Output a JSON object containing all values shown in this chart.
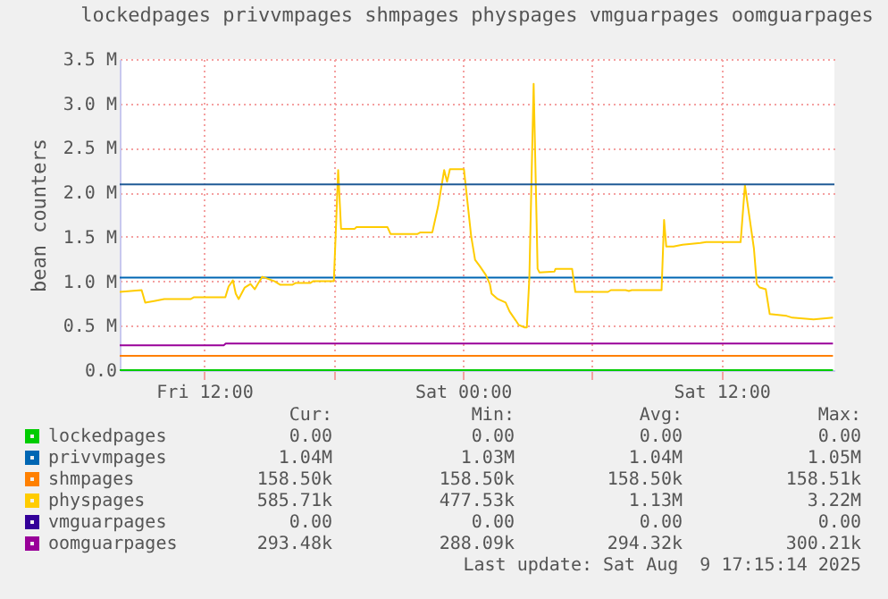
{
  "chart_data": {
    "type": "line",
    "title": "lockedpages privvmpages shmpages physpages vmguarpages oomguarpages",
    "ylabel": "bean counters",
    "xlim": [
      "2025-08-08T08:05",
      "2025-08-09T17:14"
    ],
    "xticks": [
      {
        "value": "2025-08-08T12:00",
        "label": "Fri 12:00"
      },
      {
        "value": "2025-08-08T18:00",
        "label": null
      },
      {
        "value": "2025-08-09T00:00",
        "label": "Sat 00:00"
      },
      {
        "value": "2025-08-09T06:00",
        "label": null
      },
      {
        "value": "2025-08-09T12:00",
        "label": "Sat 12:00"
      }
    ],
    "ylim": [
      0,
      3500000
    ],
    "yticks": [
      {
        "value": 0,
        "label": "0.0"
      },
      {
        "value": 500000,
        "label": "0.5 M"
      },
      {
        "value": 1000000,
        "label": "1.0 M"
      },
      {
        "value": 1500000,
        "label": "1.5 M"
      },
      {
        "value": 2000000,
        "label": "2.0 M"
      },
      {
        "value": 2500000,
        "label": "2.5 M"
      },
      {
        "value": 3000000,
        "label": "3.0 M"
      },
      {
        "value": 3500000,
        "label": "3.5 M"
      }
    ],
    "grid": true,
    "legend": "bottom",
    "series": [
      {
        "name": "lockedpages",
        "color": "#00cc00",
        "x": [
          "2025-08-08T08:05",
          "2025-08-09T17:10"
        ],
        "values": [
          0,
          0
        ]
      },
      {
        "name": "privvmpages",
        "color": "#0066b3",
        "x": [
          "2025-08-08T08:05",
          "2025-08-09T17:10"
        ],
        "values": [
          1040000,
          1040000
        ]
      },
      {
        "name": "shmpages",
        "color": "#ff8000",
        "x": [
          "2025-08-08T08:05",
          "2025-08-09T17:10"
        ],
        "values": [
          160000,
          160000
        ]
      },
      {
        "name": "physpages",
        "color": "#ffcc00",
        "x": [
          "2025-08-08T08:05",
          "2025-08-08T09:06",
          "2025-08-08T09:16",
          "2025-08-08T09:44",
          "2025-08-08T10:09",
          "2025-08-08T11:23",
          "2025-08-08T11:32",
          "2025-08-08T12:59",
          "2025-08-08T13:08",
          "2025-08-08T13:20",
          "2025-08-08T13:28",
          "2025-08-08T13:36",
          "2025-08-08T13:53",
          "2025-08-08T14:09",
          "2025-08-08T14:21",
          "2025-08-08T14:31",
          "2025-08-08T14:42",
          "2025-08-08T15:16",
          "2025-08-08T15:32",
          "2025-08-08T16:05",
          "2025-08-08T16:14",
          "2025-08-08T16:55",
          "2025-08-08T17:03",
          "2025-08-08T18:01",
          "2025-08-08T18:13",
          "2025-08-08T18:21",
          "2025-08-08T18:59",
          "2025-08-08T19:04",
          "2025-08-08T20:30",
          "2025-08-08T20:39",
          "2025-08-08T21:53",
          "2025-08-08T22:02",
          "2025-08-08T22:35",
          "2025-08-08T22:51",
          "2025-08-08T23:08",
          "2025-08-08T23:16",
          "2025-08-08T23:24",
          "2025-08-09T00:03",
          "2025-08-09T00:23",
          "2025-08-09T00:34",
          "2025-08-09T00:47",
          "2025-08-09T01:04",
          "2025-08-09T01:15",
          "2025-08-09T01:20",
          "2025-08-09T01:37",
          "2025-08-09T01:59",
          "2025-08-09T02:10",
          "2025-08-09T02:27",
          "2025-08-09T02:35",
          "2025-08-09T02:52",
          "2025-08-09T02:58",
          "2025-08-09T03:05",
          "2025-08-09T03:17",
          "2025-08-09T03:28",
          "2025-08-09T03:33",
          "2025-08-09T04:15",
          "2025-08-09T04:18",
          "2025-08-09T05:04",
          "2025-08-09T05:13",
          "2025-08-09T06:44",
          "2025-08-09T06:52",
          "2025-08-09T07:33",
          "2025-08-09T07:42",
          "2025-08-09T07:50",
          "2025-08-09T09:13",
          "2025-08-09T09:20",
          "2025-08-09T09:26",
          "2025-08-09T09:46",
          "2025-08-09T10:11",
          "2025-08-09T11:01",
          "2025-08-09T11:17",
          "2025-08-09T12:53",
          "2025-08-09T13:05",
          "2025-08-09T13:18",
          "2025-08-09T13:30",
          "2025-08-09T13:38",
          "2025-08-09T13:46",
          "2025-08-09T14:03",
          "2025-08-09T14:14",
          "2025-08-09T15:01",
          "2025-08-09T15:17",
          "2025-08-09T16:16",
          "2025-08-09T17:10"
        ],
        "values": [
          880000,
          900000,
          760000,
          780000,
          800000,
          800000,
          820000,
          820000,
          940000,
          1010000,
          860000,
          800000,
          930000,
          970000,
          910000,
          980000,
          1050000,
          1000000,
          960000,
          960000,
          980000,
          980000,
          1000000,
          1000000,
          2250000,
          1590000,
          1590000,
          1610000,
          1610000,
          1530000,
          1530000,
          1550000,
          1550000,
          1840000,
          2250000,
          2120000,
          2260000,
          2260000,
          1510000,
          1240000,
          1170000,
          1070000,
          970000,
          860000,
          800000,
          760000,
          660000,
          560000,
          510000,
          480000,
          480000,
          1030000,
          3220000,
          1140000,
          1100000,
          1110000,
          1140000,
          1140000,
          880000,
          880000,
          900000,
          900000,
          890000,
          900000,
          900000,
          1690000,
          1390000,
          1390000,
          1410000,
          1430000,
          1440000,
          1440000,
          2080000,
          1710000,
          1370000,
          970000,
          930000,
          910000,
          630000,
          610000,
          590000,
          570000,
          590000
        ]
      },
      {
        "name": "vmguarpages",
        "color": "#330099",
        "values": [
          null,
          null
        ]
      },
      {
        "name": "oomguarpages",
        "color": "#990099",
        "x": [
          "2025-08-08T08:05",
          "2025-08-08T12:55",
          "2025-08-08T13:00",
          "2025-08-09T17:10"
        ],
        "values": [
          280000,
          280000,
          300000,
          300000
        ]
      }
    ],
    "ref_lines": [
      {
        "axis": "y",
        "value": 2090000,
        "color": "#1f5a96"
      }
    ],
    "annotations": [
      "Cur:",
      "Min:",
      "Avg:",
      "Max:",
      "0.00",
      "0.00",
      "0.00",
      "0.00",
      "1.04M",
      "1.03M",
      "1.04M",
      "1.05M",
      "158.50k",
      "158.50k",
      "158.50k",
      "158.51k",
      "585.71k",
      "477.53k",
      "1.13M",
      "3.22M",
      "0.00",
      "0.00",
      "0.00",
      "0.00",
      "293.48k",
      "288.09k",
      "294.32k",
      "300.21k",
      "Last update: Sat Aug  9 17:15:14 2025"
    ]
  }
}
